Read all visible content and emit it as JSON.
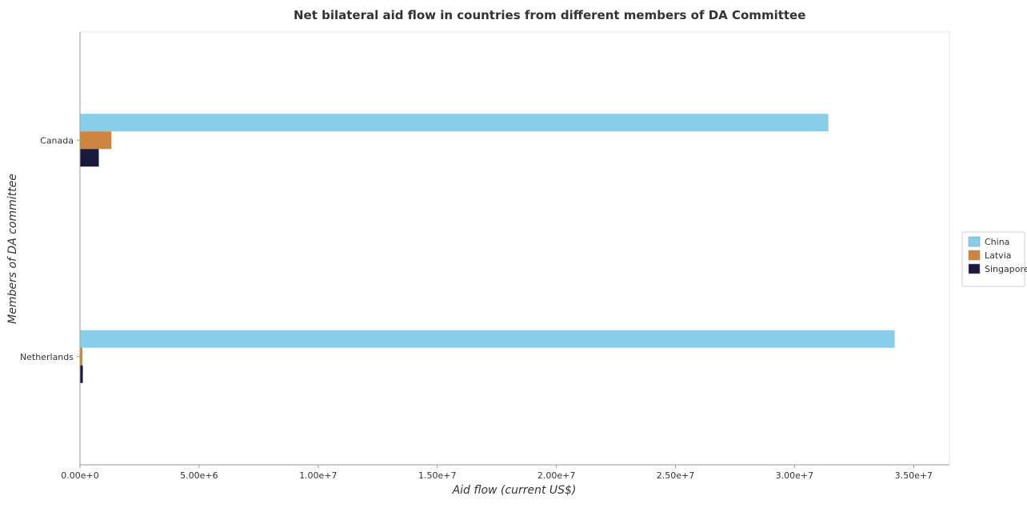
{
  "chart_data": {
    "type": "bar",
    "orientation": "horizontal",
    "title": "Net bilateral aid flow in countries from different members of DA Committee",
    "xlabel": "Aid flow (current US$)",
    "ylabel": "Members of DA committee",
    "categories": [
      "Canada",
      "Netherlands"
    ],
    "series": [
      {
        "name": "China",
        "color": "#87ceeb",
        "values": [
          31420000,
          34200000
        ]
      },
      {
        "name": "Latvia",
        "color": "#cd853f",
        "values": [
          1320000,
          100000
        ]
      },
      {
        "name": "Singapore",
        "color": "#1a1a3e",
        "values": [
          790000,
          120000
        ]
      }
    ],
    "xlim": [
      0,
      36500000
    ],
    "xticks": [
      0,
      5000000,
      10000000,
      15000000,
      20000000,
      25000000,
      30000000,
      35000000
    ],
    "xtick_labels": [
      "0.00e+0",
      "5.00e+6",
      "1.00e+7",
      "1.50e+7",
      "2.00e+7",
      "2.50e+7",
      "3.00e+7",
      "3.50e+7"
    ],
    "grid": false,
    "legend_position": "right"
  }
}
